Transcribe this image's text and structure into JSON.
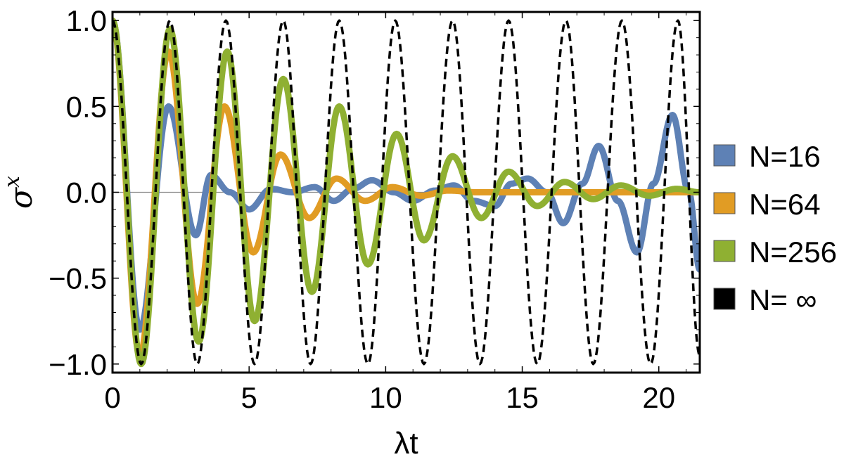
{
  "chart_data": {
    "type": "line",
    "title": "",
    "xlabel": "λt",
    "ylabel": "σ^x",
    "xlim": [
      0,
      21.5
    ],
    "ylim": [
      -1.05,
      1.05
    ],
    "x_ticks": [
      "0",
      "5",
      "10",
      "15",
      "20"
    ],
    "x_tick_values": [
      0,
      5,
      10,
      15,
      20
    ],
    "y_ticks": [
      "1.0",
      "0.5",
      "0.0",
      "−0.5",
      "−1.0"
    ],
    "y_tick_values": [
      1.0,
      0.5,
      0.0,
      -0.5,
      -1.0
    ],
    "zero_line": true,
    "legend_position": "right",
    "series": [
      {
        "name": "N=16",
        "color": "#5e81b5",
        "style": "solid",
        "x": [
          0,
          1.0,
          2.05,
          3.05,
          3.6,
          4.3,
          5.0,
          5.8,
          6.6,
          7.4,
          8.1,
          8.8,
          9.5,
          10.3,
          11.0,
          11.8,
          12.5,
          13.2,
          14.0,
          14.6,
          15.2,
          15.9,
          16.5,
          17.2,
          17.8,
          18.5,
          19.2,
          19.8,
          20.5,
          21.1,
          21.5
        ],
        "y": [
          1.0,
          -0.8,
          0.5,
          -0.25,
          0.1,
          0.0,
          -0.1,
          0.02,
          0.0,
          0.03,
          -0.05,
          0.02,
          0.07,
          0.0,
          -0.05,
          0.01,
          0.04,
          -0.05,
          -0.08,
          0.05,
          0.08,
          0.0,
          -0.18,
          0.05,
          0.27,
          -0.05,
          -0.35,
          0.05,
          0.45,
          0.0,
          -0.45
        ]
      },
      {
        "name": "N=64",
        "color": "#e19c24",
        "style": "solid",
        "x": [
          0,
          1.0,
          2.05,
          3.1,
          4.1,
          5.15,
          6.15,
          7.2,
          8.2,
          9.25,
          10.25,
          11.3,
          12.3,
          13.35,
          14.35,
          15.4,
          16.4,
          17.45,
          18.45,
          19.5,
          20.5,
          21.5
        ],
        "y": [
          1.0,
          -0.95,
          0.82,
          -0.65,
          0.5,
          -0.35,
          0.22,
          -0.15,
          0.08,
          -0.05,
          0.03,
          -0.02,
          0.01,
          0.0,
          0.0,
          0.0,
          0.0,
          0.0,
          0.0,
          0.0,
          0.0,
          0.0
        ]
      },
      {
        "name": "N=256",
        "color": "#8fb032",
        "style": "solid",
        "x": [
          0,
          1.05,
          2.1,
          3.15,
          4.2,
          5.2,
          6.25,
          7.3,
          8.3,
          9.35,
          10.4,
          11.4,
          12.45,
          13.5,
          14.5,
          15.55,
          16.55,
          17.6,
          18.6,
          19.65,
          20.65,
          21.5
        ],
        "y": [
          1.0,
          -1.0,
          0.95,
          -0.87,
          0.82,
          -0.75,
          0.66,
          -0.58,
          0.5,
          -0.42,
          0.34,
          -0.28,
          0.21,
          -0.15,
          0.12,
          -0.08,
          0.06,
          -0.04,
          0.04,
          -0.02,
          0.02,
          0.0
        ]
      },
      {
        "name": "N= ∞",
        "color": "#000000",
        "style": "dashed",
        "x": [
          0,
          1.05,
          2.1,
          3.1,
          4.15,
          5.2,
          6.25,
          7.25,
          8.3,
          9.35,
          10.35,
          11.4,
          12.45,
          13.45,
          14.5,
          15.55,
          16.6,
          17.6,
          18.65,
          19.7,
          20.7,
          21.5
        ],
        "y": [
          1.0,
          -1.0,
          1.0,
          -1.0,
          1.0,
          -1.0,
          1.0,
          -1.0,
          1.0,
          -1.0,
          1.0,
          -1.0,
          1.0,
          -1.0,
          1.0,
          -1.0,
          1.0,
          -1.0,
          1.0,
          -1.0,
          1.0,
          -0.95
        ]
      }
    ]
  }
}
